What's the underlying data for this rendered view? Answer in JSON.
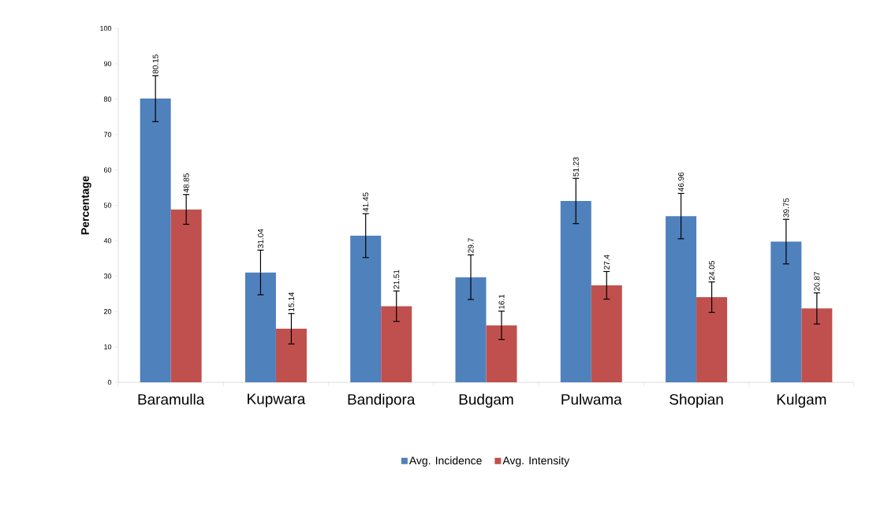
{
  "chart_data": {
    "type": "bar",
    "ylabel": "Percentage",
    "categories": [
      "Baramulla",
      "Kupwara",
      "Bandipora",
      "Budgam",
      "Pulwama",
      "Shopian",
      "Kulgam"
    ],
    "series": [
      {
        "name": "Avg. Incidence",
        "color": "#4f81bd",
        "values": [
          80.15,
          31.04,
          41.45,
          29.7,
          51.23,
          46.96,
          39.75
        ],
        "errors": [
          6.5,
          6.3,
          6.2,
          6.3,
          6.4,
          6.4,
          6.3
        ],
        "value_labels": [
          "80.15",
          "31.04",
          "41.45",
          "29.7",
          "51.23",
          "46.96",
          "39.75"
        ]
      },
      {
        "name": "Avg. Intensity",
        "color": "#c0504d",
        "values": [
          48.85,
          15.14,
          21.51,
          16.1,
          27.4,
          24.05,
          20.87
        ],
        "errors": [
          4.2,
          4.3,
          4.3,
          4.0,
          3.9,
          4.3,
          4.4
        ],
        "value_labels": [
          "48.85",
          "15.14",
          "21.51",
          "16.1",
          "27.4",
          "24.05",
          "20.87"
        ]
      }
    ],
    "ylim": [
      0,
      100
    ],
    "yticks": [
      0,
      10,
      20,
      30,
      40,
      50,
      60,
      70,
      80,
      90,
      100
    ],
    "grid": false,
    "legend": "bottom"
  }
}
